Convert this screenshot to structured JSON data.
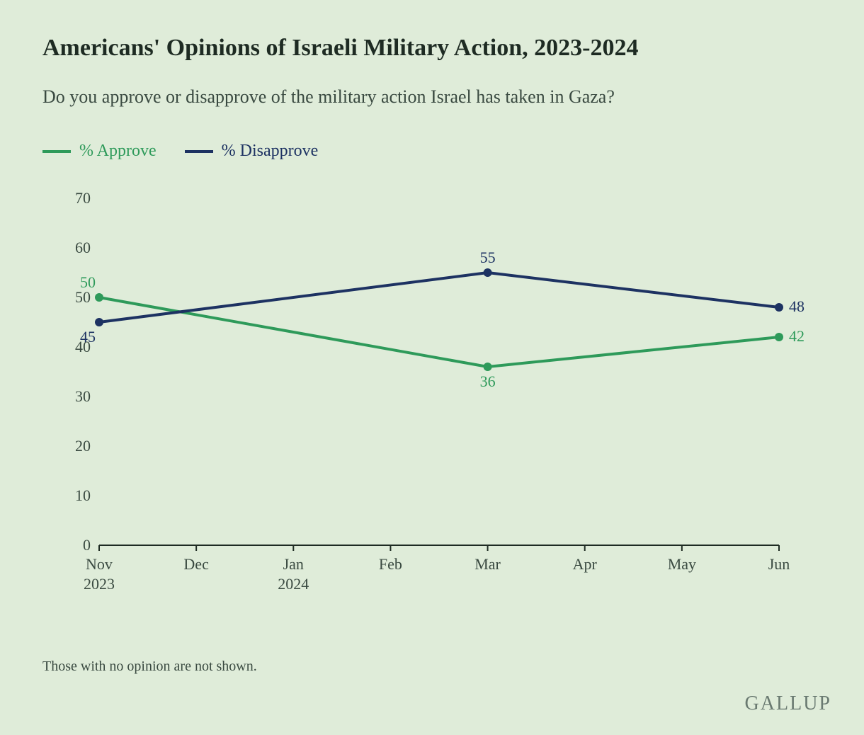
{
  "background_color": "#dfecd9",
  "text_color": "#1e2b23",
  "subtitle_color": "#3a4a41",
  "title": "Americans' Opinions of Israeli Military Action, 2023-2024",
  "title_fontsize": 34,
  "title_fontweight": 700,
  "subtitle": "Do you approve or disapprove of the military action Israel has taken in Gaza?",
  "subtitle_fontsize": 26,
  "legend": {
    "fontsize": 24,
    "items": [
      {
        "label": "% Approve",
        "color": "#2e9a5a"
      },
      {
        "label": "% Disapprove",
        "color": "#1d3262"
      }
    ]
  },
  "chart": {
    "type": "line",
    "ylim": [
      0,
      70
    ],
    "ytick_step": 10,
    "yticks": [
      0,
      10,
      20,
      30,
      40,
      50,
      60,
      70
    ],
    "x_categories": [
      "Nov",
      "Dec",
      "Jan",
      "Feb",
      "Mar",
      "Apr",
      "May",
      "Jun"
    ],
    "x_sub_labels": {
      "0": "2023",
      "2": "2024"
    },
    "axis_fontsize": 22,
    "axis_color": "#3a4a41",
    "axis_line_color": "#1e2b23",
    "data_label_fontsize": 22,
    "line_width": 4,
    "marker_radius": 6,
    "series": [
      {
        "name": "% Approve",
        "color": "#2e9a5a",
        "points": [
          {
            "xi": 0,
            "y": 50,
            "label": "50",
            "label_dx": -5,
            "label_dy": -14,
            "anchor": "end"
          },
          {
            "xi": 4,
            "y": 36,
            "label": "36",
            "label_dx": 0,
            "label_dy": 28,
            "anchor": "middle"
          },
          {
            "xi": 7,
            "y": 42,
            "label": "42",
            "label_dx": 14,
            "label_dy": 6,
            "anchor": "start"
          }
        ]
      },
      {
        "name": "% Disapprove",
        "color": "#1d3262",
        "points": [
          {
            "xi": 0,
            "y": 45,
            "label": "45",
            "label_dx": -5,
            "label_dy": 28,
            "anchor": "end"
          },
          {
            "xi": 4,
            "y": 55,
            "label": "55",
            "label_dx": 0,
            "label_dy": -14,
            "anchor": "middle"
          },
          {
            "xi": 7,
            "y": 48,
            "label": "48",
            "label_dx": 14,
            "label_dy": 6,
            "anchor": "start"
          }
        ]
      }
    ]
  },
  "footnote": "Those with no opinion are not shown.",
  "footnote_fontsize": 20,
  "brand": "GALLUP",
  "brand_fontsize": 28,
  "brand_color": "#6a7a71"
}
